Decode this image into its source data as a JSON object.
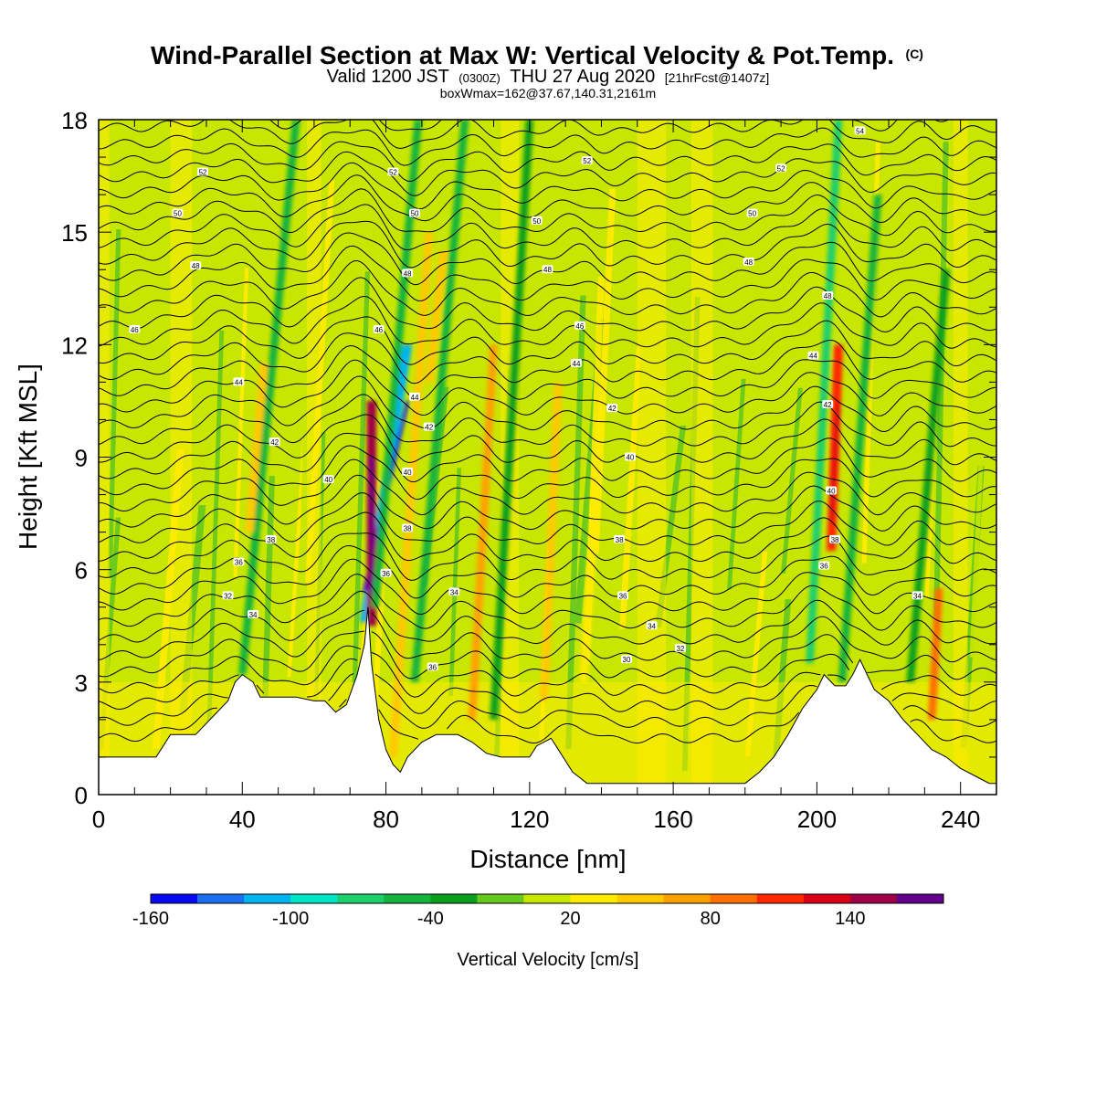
{
  "header": {
    "title_main": "Wind-Parallel Section at Max W: Vertical Velocity & Pot.Temp.",
    "title_mark": "(C)",
    "subtitle_a": "Valid 1200 JST",
    "subtitle_b": "(0300Z)",
    "subtitle_c": "THU 27 Aug 2020",
    "subtitle_d": "[21hrFcst@1407z]",
    "subtitle2": "boxWmax=162@37.67,140.31,2161m"
  },
  "chart_data": {
    "type": "heatmap",
    "title": "Wind-Parallel Section at Max W: Vertical Velocity & Pot.Temp.",
    "xlabel": "Distance [nm]",
    "ylabel": "Height [Kft MSL]",
    "xlim": [
      0,
      250
    ],
    "ylim": [
      0,
      18
    ],
    "x_ticks": [
      0,
      40,
      80,
      120,
      160,
      200,
      240
    ],
    "y_ticks": [
      0,
      3,
      6,
      9,
      12,
      15,
      18
    ],
    "grid": false,
    "field": "Vertical Velocity [cm/s]",
    "contour_field": "Potential Temperature (C)",
    "contour_levels": [
      30,
      32,
      34,
      36,
      38,
      40,
      42,
      44,
      46,
      48,
      50,
      52,
      54
    ],
    "colorbar": {
      "label": "Vertical Velocity [cm/s]",
      "tick_labels": [
        "-160",
        "-100",
        "-40",
        "20",
        "80",
        "140"
      ],
      "tick_values": [
        -160,
        -100,
        -40,
        20,
        80,
        140
      ],
      "bins": [
        -160,
        -140,
        -120,
        -100,
        -80,
        -60,
        -40,
        -20,
        0,
        20,
        40,
        60,
        80,
        100,
        120,
        140,
        160
      ],
      "colors": [
        "#0a0af0",
        "#1e6ef0",
        "#00b4f0",
        "#00e6c8",
        "#1ecf6e",
        "#14b43c",
        "#0aa01e",
        "#64c81e",
        "#c8e600",
        "#ffeb00",
        "#ffc800",
        "#ffa000",
        "#ff6e00",
        "#ff2800",
        "#dc0014",
        "#a00046",
        "#64008c"
      ]
    },
    "updraft_peak": {
      "x_nm": 75,
      "height_kft": 8.5,
      "w_cms": 162
    },
    "terrain_kft": [
      [
        0,
        1.0
      ],
      [
        4,
        1.0
      ],
      [
        16,
        1.0
      ],
      [
        18,
        1.3
      ],
      [
        20,
        1.6
      ],
      [
        27,
        1.6
      ],
      [
        31,
        2.0
      ],
      [
        36,
        2.5
      ],
      [
        38,
        3.0
      ],
      [
        40,
        3.2
      ],
      [
        43,
        3.0
      ],
      [
        45,
        2.6
      ],
      [
        55,
        2.6
      ],
      [
        60,
        2.5
      ],
      [
        63,
        2.5
      ],
      [
        66,
        2.2
      ],
      [
        69,
        2.4
      ],
      [
        72,
        3.2
      ],
      [
        74,
        4.0
      ],
      [
        75,
        5.0
      ],
      [
        76,
        3.5
      ],
      [
        78,
        2.0
      ],
      [
        80,
        1.2
      ],
      [
        82,
        0.8
      ],
      [
        84,
        0.6
      ],
      [
        86,
        1.0
      ],
      [
        90,
        1.4
      ],
      [
        94,
        1.6
      ],
      [
        100,
        1.6
      ],
      [
        104,
        1.4
      ],
      [
        108,
        1.1
      ],
      [
        112,
        1.0
      ],
      [
        116,
        1.0
      ],
      [
        120,
        1.0
      ],
      [
        122,
        1.3
      ],
      [
        126,
        1.5
      ],
      [
        128,
        1.2
      ],
      [
        132,
        0.6
      ],
      [
        136,
        0.3
      ],
      [
        140,
        0.3
      ],
      [
        160,
        0.3
      ],
      [
        180,
        0.3
      ],
      [
        184,
        0.6
      ],
      [
        188,
        1.0
      ],
      [
        192,
        1.6
      ],
      [
        196,
        2.3
      ],
      [
        200,
        2.8
      ],
      [
        202,
        3.2
      ],
      [
        205,
        2.9
      ],
      [
        208,
        2.9
      ],
      [
        210,
        3.2
      ],
      [
        212,
        3.6
      ],
      [
        214,
        3.2
      ],
      [
        216,
        2.8
      ],
      [
        220,
        2.5
      ],
      [
        224,
        2.0
      ],
      [
        228,
        1.6
      ],
      [
        232,
        1.2
      ],
      [
        236,
        1.0
      ],
      [
        240,
        0.7
      ],
      [
        244,
        0.5
      ],
      [
        248,
        0.3
      ],
      [
        250,
        0.3
      ]
    ],
    "bands": [
      {
        "x0": 40,
        "w_cms": -60,
        "rise_nm": 15,
        "y0_kft": 3.2,
        "y1_kft": 18
      },
      {
        "x0": 74,
        "w_cms": -120,
        "rise_nm": 12,
        "y0_kft": 4.6,
        "y1_kft": 12
      },
      {
        "x0": 76,
        "w_cms": 150,
        "rise_nm": 0,
        "y0_kft": 4.5,
        "y1_kft": 10.5
      },
      {
        "x0": 77,
        "w_cms": -60,
        "rise_nm": 12,
        "y0_kft": 5.0,
        "y1_kft": 18
      },
      {
        "x0": 82,
        "w_cms": 40,
        "rise_nm": 10,
        "y0_kft": 1.0,
        "y1_kft": 15
      },
      {
        "x0": 88,
        "w_cms": -50,
        "rise_nm": 14,
        "y0_kft": 3.0,
        "y1_kft": 18
      },
      {
        "x0": 104,
        "w_cms": 60,
        "rise_nm": 6,
        "y0_kft": 2.0,
        "y1_kft": 12
      },
      {
        "x0": 110,
        "w_cms": -40,
        "rise_nm": 10,
        "y0_kft": 2.0,
        "y1_kft": 18
      },
      {
        "x0": 124,
        "w_cms": 40,
        "rise_nm": 4,
        "y0_kft": 2.5,
        "y1_kft": 11
      },
      {
        "x0": 135,
        "w_cms": 30,
        "rise_nm": 4,
        "y0_kft": 3.0,
        "y1_kft": 9
      },
      {
        "x0": 198,
        "w_cms": -80,
        "rise_nm": 8,
        "y0_kft": 3.5,
        "y1_kft": 18
      },
      {
        "x0": 204,
        "w_cms": 110,
        "rise_nm": 2,
        "y0_kft": 6.5,
        "y1_kft": 12
      },
      {
        "x0": 207,
        "w_cms": -60,
        "rise_nm": 10,
        "y0_kft": 3.0,
        "y1_kft": 16
      },
      {
        "x0": 232,
        "w_cms": 80,
        "rise_nm": 2,
        "y0_kft": 2.0,
        "y1_kft": 5.5
      },
      {
        "x0": 226,
        "w_cms": -40,
        "rise_nm": 10,
        "y0_kft": 3.0,
        "y1_kft": 14
      },
      {
        "x0": 42,
        "w_cms": 40,
        "rise_nm": 4,
        "y0_kft": 7.0,
        "y1_kft": 11.5
      },
      {
        "x0": 92,
        "w_cms": 40,
        "rise_nm": 4,
        "y0_kft": 11.0,
        "y1_kft": 14.5
      }
    ],
    "theta_labels": [
      {
        "x": 29,
        "y": 16.6,
        "text": "52"
      },
      {
        "x": 22,
        "y": 15.5,
        "text": "50"
      },
      {
        "x": 27,
        "y": 14.1,
        "text": "48"
      },
      {
        "x": 10,
        "y": 12.4,
        "text": "46"
      },
      {
        "x": 39,
        "y": 11.0,
        "text": "44"
      },
      {
        "x": 49,
        "y": 9.4,
        "text": "42"
      },
      {
        "x": 64,
        "y": 8.4,
        "text": "40"
      },
      {
        "x": 48,
        "y": 6.8,
        "text": "38"
      },
      {
        "x": 39,
        "y": 6.2,
        "text": "36"
      },
      {
        "x": 36,
        "y": 5.3,
        "text": "32"
      },
      {
        "x": 43,
        "y": 4.8,
        "text": "34"
      },
      {
        "x": 82,
        "y": 16.6,
        "text": "52"
      },
      {
        "x": 88,
        "y": 15.5,
        "text": "50"
      },
      {
        "x": 86,
        "y": 13.9,
        "text": "48"
      },
      {
        "x": 78,
        "y": 12.4,
        "text": "46"
      },
      {
        "x": 88,
        "y": 10.6,
        "text": "44"
      },
      {
        "x": 92,
        "y": 9.8,
        "text": "42"
      },
      {
        "x": 86,
        "y": 8.6,
        "text": "40"
      },
      {
        "x": 86,
        "y": 7.1,
        "text": "38"
      },
      {
        "x": 80,
        "y": 5.9,
        "text": "36"
      },
      {
        "x": 99,
        "y": 5.4,
        "text": "34"
      },
      {
        "x": 93,
        "y": 3.4,
        "text": "36"
      },
      {
        "x": 136,
        "y": 16.9,
        "text": "52"
      },
      {
        "x": 122,
        "y": 15.3,
        "text": "50"
      },
      {
        "x": 125,
        "y": 14.0,
        "text": "48"
      },
      {
        "x": 134,
        "y": 12.5,
        "text": "46"
      },
      {
        "x": 133,
        "y": 11.5,
        "text": "44"
      },
      {
        "x": 143,
        "y": 10.3,
        "text": "42"
      },
      {
        "x": 148,
        "y": 9.0,
        "text": "40"
      },
      {
        "x": 145,
        "y": 6.8,
        "text": "38"
      },
      {
        "x": 146,
        "y": 5.3,
        "text": "36"
      },
      {
        "x": 154,
        "y": 4.5,
        "text": "34"
      },
      {
        "x": 162,
        "y": 3.9,
        "text": "32"
      },
      {
        "x": 147,
        "y": 3.6,
        "text": "30"
      },
      {
        "x": 190,
        "y": 16.7,
        "text": "52"
      },
      {
        "x": 182,
        "y": 15.5,
        "text": "50"
      },
      {
        "x": 181,
        "y": 14.2,
        "text": "48"
      },
      {
        "x": 212,
        "y": 17.7,
        "text": "54"
      },
      {
        "x": 203,
        "y": 13.3,
        "text": "48"
      },
      {
        "x": 199,
        "y": 11.7,
        "text": "44"
      },
      {
        "x": 203,
        "y": 10.4,
        "text": "42"
      },
      {
        "x": 204,
        "y": 8.1,
        "text": "40"
      },
      {
        "x": 205,
        "y": 6.8,
        "text": "38"
      },
      {
        "x": 202,
        "y": 6.1,
        "text": "36"
      },
      {
        "x": 228,
        "y": 5.3,
        "text": "34"
      }
    ]
  }
}
